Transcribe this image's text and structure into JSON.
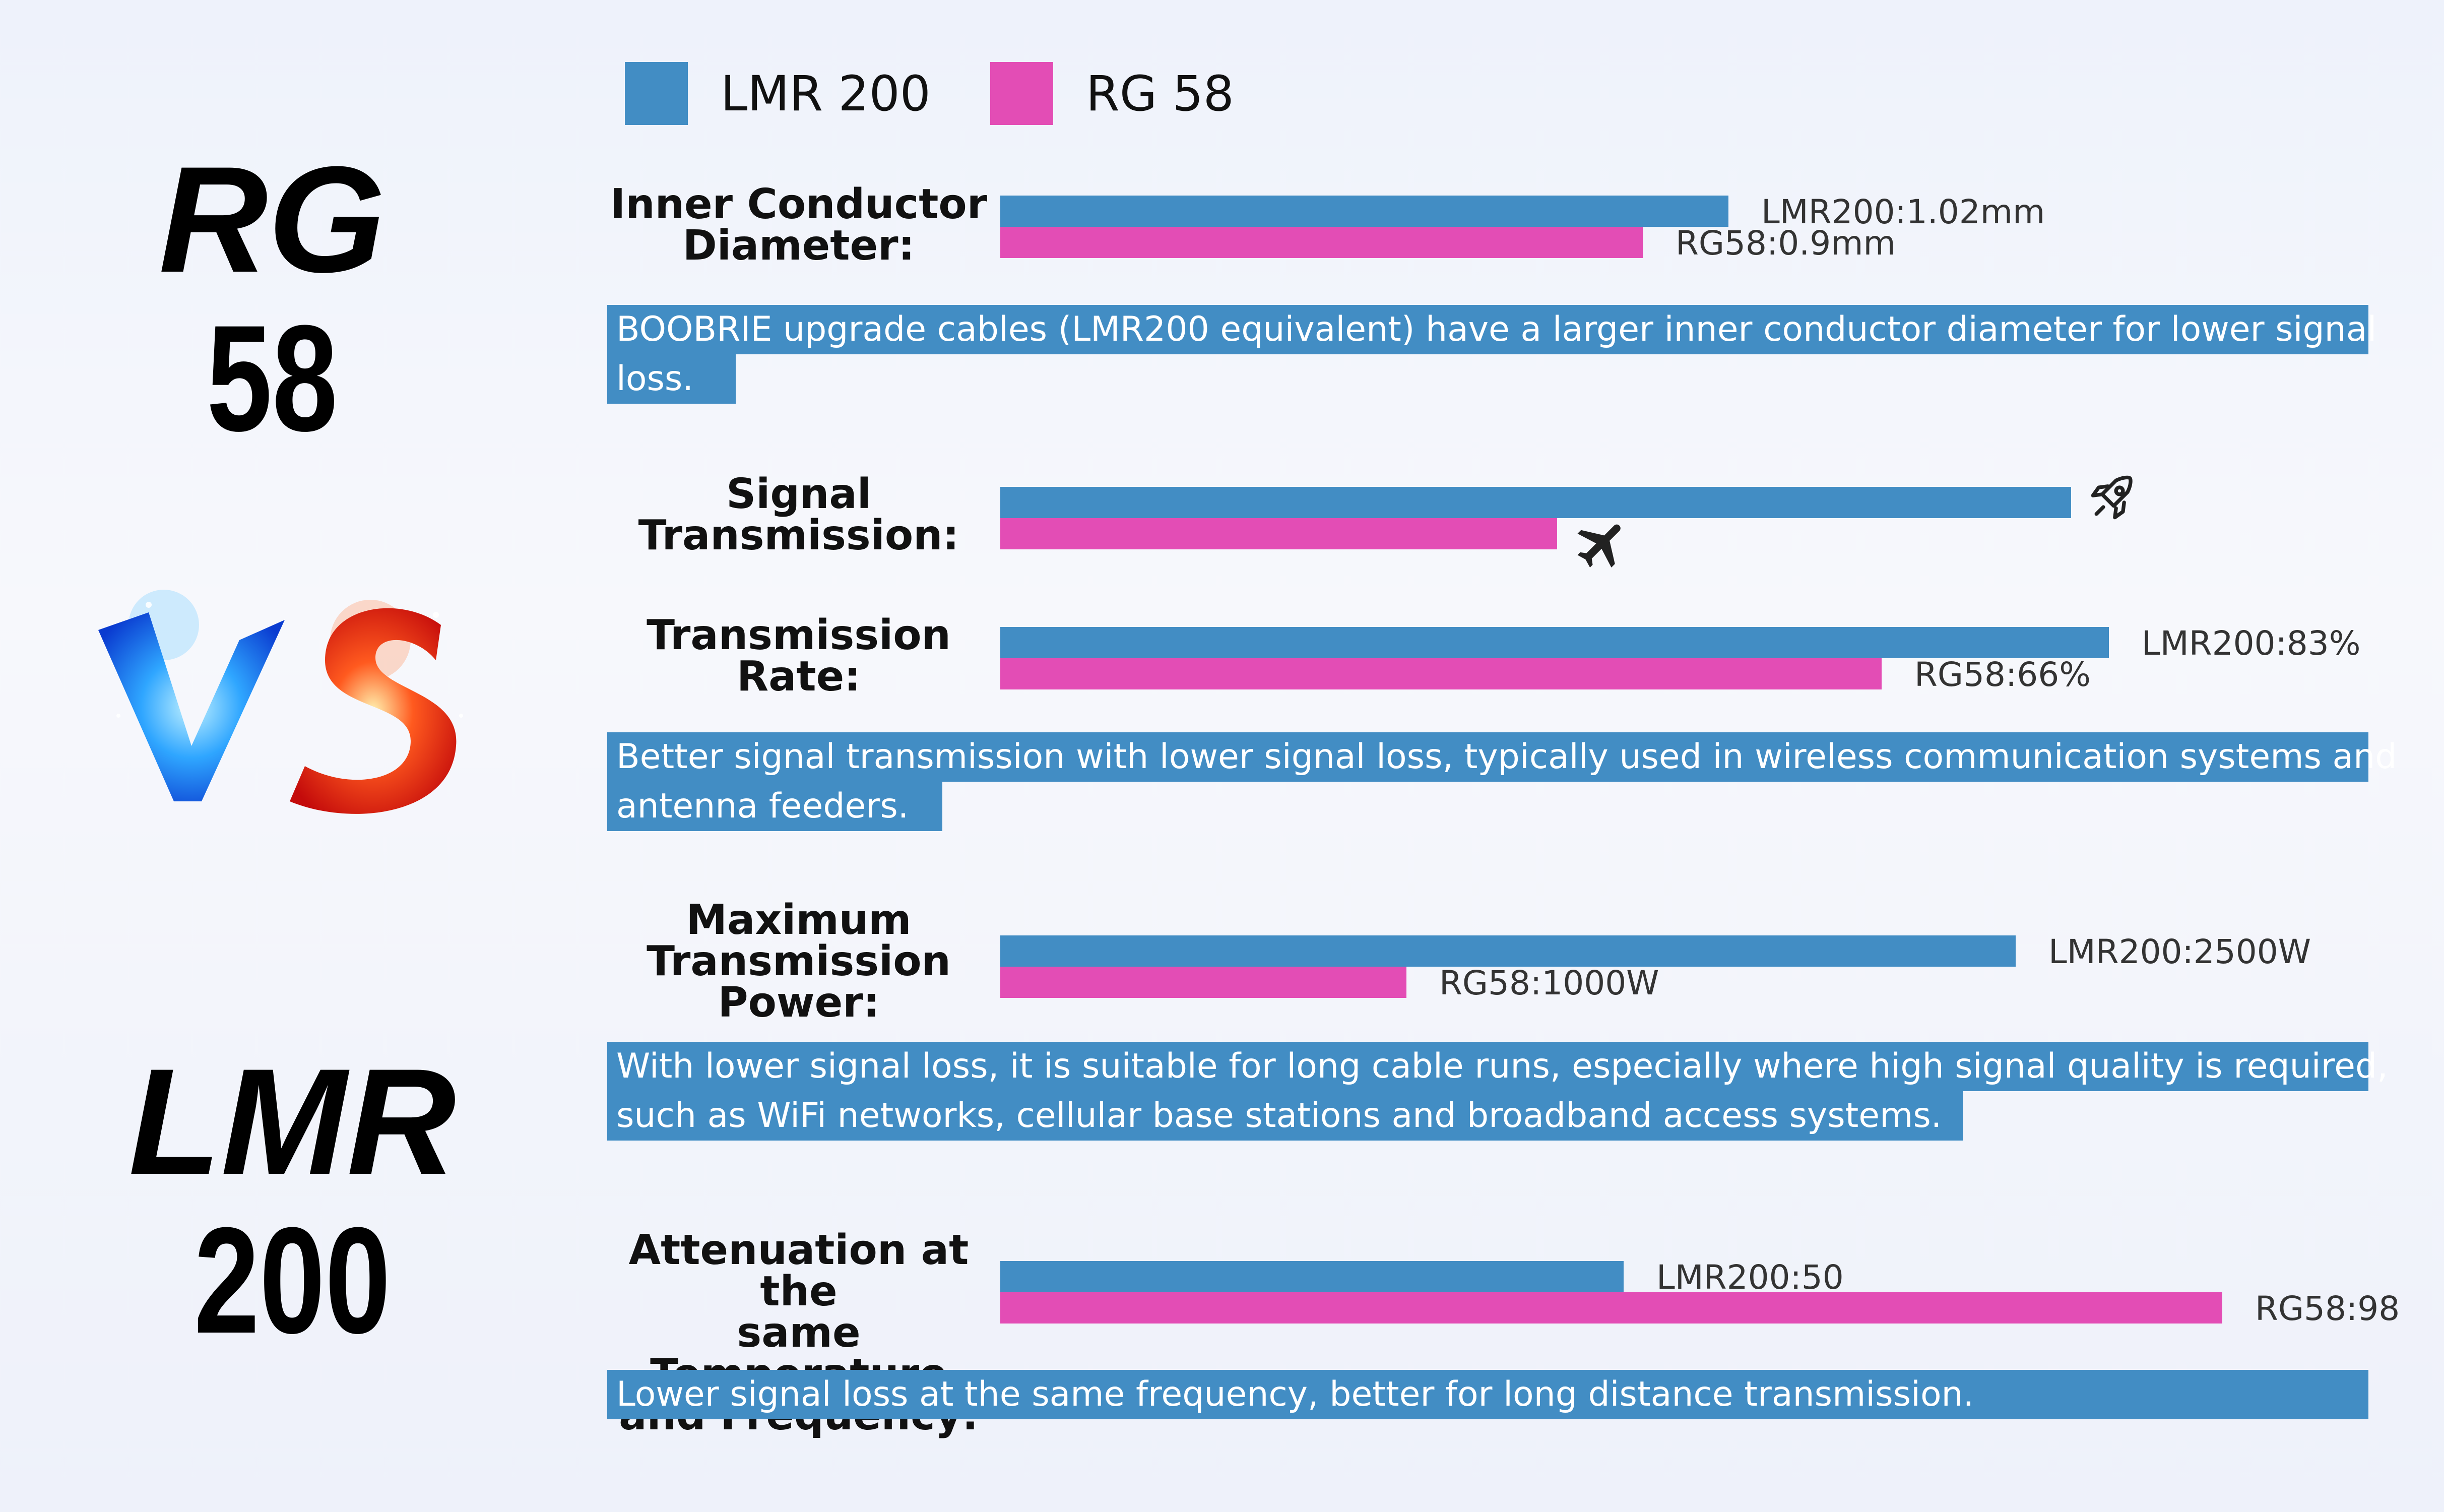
{
  "titles": {
    "top_line1": "RG",
    "top_line2": "58",
    "bottom_line1": "LMR",
    "bottom_line2": "200",
    "vs_letter_v": "V",
    "vs_letter_s": "S"
  },
  "legend": [
    {
      "name": "LMR 200",
      "color": "#428dc4"
    },
    {
      "name": "RG 58",
      "color": "#e34db5"
    }
  ],
  "chart_data": [
    {
      "type": "bar",
      "title": "Inner Conductor Diameter:",
      "series": [
        {
          "name": "LMR 200",
          "value": 1.02,
          "label": "LMR200:1.02mm"
        },
        {
          "name": "RG 58",
          "value": 0.9,
          "label": "RG58:0.9mm"
        }
      ]
    },
    {
      "type": "bar",
      "title": "Signal Transmission:",
      "series": [
        {
          "name": "LMR 200",
          "value": 0.75,
          "icon": "rocket-icon"
        },
        {
          "name": "RG 58",
          "value": 0.39,
          "icon": "airplane-icon"
        }
      ]
    },
    {
      "type": "bar",
      "title": "Transmission Rate:",
      "series": [
        {
          "name": "LMR 200",
          "value": 83,
          "label": "LMR200:83%"
        },
        {
          "name": "RG 58",
          "value": 66,
          "label": "RG58:66%"
        }
      ]
    },
    {
      "type": "bar",
      "title": "Maximum Transmission Power:",
      "series": [
        {
          "name": "LMR 200",
          "value": 2500,
          "label": "LMR200:2500W"
        },
        {
          "name": "RG 58",
          "value": 1000,
          "label": "RG58:1000W"
        }
      ]
    },
    {
      "type": "bar",
      "title": "Attenuation at the same Temperature and Frequency:",
      "series": [
        {
          "name": "LMR 200",
          "value": 50,
          "label": "LMR200:50"
        },
        {
          "name": "RG 58",
          "value": 98,
          "label": "RG58:98"
        }
      ]
    }
  ],
  "labels": {
    "inner": [
      "Inner Conductor",
      "Diameter:"
    ],
    "signal": [
      "Signal",
      "Transmission:"
    ],
    "rate": [
      "Transmission",
      "Rate:"
    ],
    "power": [
      "Maximum",
      "Transmission",
      "Power:"
    ],
    "atten": [
      "Attenuation at the",
      "same Temperature",
      "and Frequency:"
    ]
  },
  "notes": {
    "inner": [
      "BOOBRIE upgrade cables (LMR200 equivalent) have a larger inner conductor diameter for lower signal",
      "loss."
    ],
    "rate": [
      "Better signal transmission with lower signal loss, typically used in wireless communication systems and",
      "antenna feeders."
    ],
    "power": [
      "With lower signal loss, it is suitable for long cable runs, especially where high signal quality is required,",
      "such as WiFi networks, cellular base stations and broadband access systems."
    ],
    "atten": [
      "Lower signal loss at the same frequency, better for long distance transmission."
    ]
  }
}
